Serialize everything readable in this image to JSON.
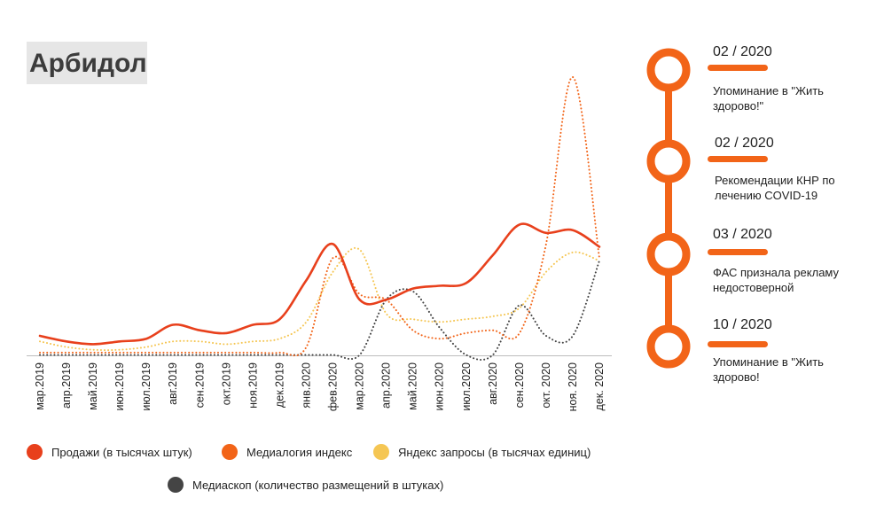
{
  "title": "Арбидол",
  "colors": {
    "sales": "#e8401c",
    "medialogia": "#f26418",
    "yandex": "#f5c653",
    "mediascope": "#444444",
    "timeline": "#f26418"
  },
  "chart_data": {
    "type": "line",
    "categories": [
      "мар.2019",
      "апр.2019",
      "май.2019",
      "июн.2019",
      "июл.2019",
      "авг.2019",
      "сен.2019",
      "окт.2019",
      "ноя.2019",
      "дек.2019",
      "янв.2020",
      "фев.2020",
      "мар.2020",
      "апр.2020",
      "май.2020",
      "июн.2020",
      "июл.2020",
      "авг.2020",
      "сен.2020",
      "окт. 2020",
      "ноя. 2020",
      "дек. 2020"
    ],
    "ylim": [
      0,
      100
    ],
    "grid": false,
    "legend_position": "bottom",
    "series": [
      {
        "name": "Продажи (в тысячах штук)",
        "style": "solid",
        "color_key": "sales",
        "values": [
          7,
          5,
          4,
          5,
          6,
          11,
          9,
          8,
          11,
          13,
          27,
          40,
          20,
          20,
          24,
          25,
          26,
          36,
          47,
          44,
          45,
          39
        ]
      },
      {
        "name": "Медиалогия индекс",
        "style": "dotted",
        "color_key": "medialogia",
        "values": [
          1,
          1,
          1,
          1,
          1,
          1,
          1,
          1,
          1,
          1,
          3,
          35,
          22,
          20,
          9,
          6,
          8,
          9,
          8,
          40,
          100,
          35
        ]
      },
      {
        "name": "Яндекс запросы (в тысячах единиц)",
        "style": "dotted",
        "color_key": "yandex",
        "values": [
          5,
          3,
          2,
          2,
          3,
          5,
          5,
          4,
          5,
          6,
          12,
          30,
          38,
          15,
          13,
          12,
          13,
          14,
          17,
          30,
          37,
          34
        ]
      },
      {
        "name": "Медиаскоп (количество размещений в штуках)",
        "style": "dotted",
        "color_key": "mediascope",
        "values": [
          0,
          0,
          0,
          0,
          0,
          0,
          0,
          0,
          0,
          0,
          0,
          0,
          0,
          20,
          23,
          10,
          0,
          0,
          18,
          7,
          7,
          34
        ]
      }
    ]
  },
  "timeline": [
    {
      "date": "02 / 2020",
      "text": [
        "Упоминание в \"Жить",
        "здорово!\""
      ]
    },
    {
      "date": "02 / 2020",
      "text": [
        "Рекомендации КНР по",
        "лечению COVID-19"
      ]
    },
    {
      "date": "03 / 2020",
      "text": [
        "ФАС признала рекламу",
        "недостоверной"
      ]
    },
    {
      "date": "10 / 2020",
      "text": [
        "Упоминание в \"Жить",
        "здорово!"
      ]
    }
  ]
}
